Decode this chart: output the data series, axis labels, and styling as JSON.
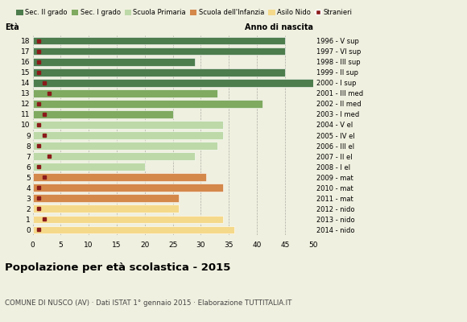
{
  "ages": [
    18,
    17,
    16,
    15,
    14,
    13,
    12,
    11,
    10,
    9,
    8,
    7,
    6,
    5,
    4,
    3,
    2,
    1,
    0
  ],
  "bar_values": [
    45,
    45,
    29,
    45,
    50,
    33,
    41,
    25,
    34,
    34,
    33,
    29,
    20,
    31,
    34,
    26,
    26,
    34,
    36
  ],
  "stranieri_values": [
    1,
    1,
    1,
    1,
    2,
    3,
    1,
    2,
    1,
    2,
    1,
    3,
    1,
    2,
    1,
    1,
    1,
    2,
    1
  ],
  "categories": {
    "sec2": [
      14,
      15,
      16,
      17,
      18
    ],
    "sec1": [
      11,
      12,
      13
    ],
    "primaria": [
      6,
      7,
      8,
      9,
      10
    ],
    "infanzia": [
      3,
      4,
      5
    ],
    "nido": [
      0,
      1,
      2
    ]
  },
  "colors": {
    "sec2": "#4d7c4d",
    "sec1": "#7faa60",
    "primaria": "#bdd9a8",
    "infanzia": "#d4884a",
    "nido": "#f5d98b",
    "stranieri": "#8b1a1a"
  },
  "right_labels": {
    "18": "1996 - V sup",
    "17": "1997 - VI sup",
    "16": "1998 - III sup",
    "15": "1999 - II sup",
    "14": "2000 - I sup",
    "13": "2001 - III med",
    "12": "2002 - II med",
    "11": "2003 - I med",
    "10": "2004 - V el",
    "9": "2005 - IV el",
    "8": "2006 - III el",
    "7": "2007 - II el",
    "6": "2008 - I el",
    "5": "2009 - mat",
    "4": "2010 - mat",
    "3": "2011 - mat",
    "2": "2012 - nido",
    "1": "2013 - nido",
    "0": "2014 - nido"
  },
  "legend_labels": [
    "Sec. II grado",
    "Sec. I grado",
    "Scuola Primaria",
    "Scuola dell'Infanzia",
    "Asilo Nido",
    "Stranieri"
  ],
  "title": "Popolazione per età scolastica - 2015",
  "subtitle": "COMUNE DI NUSCO (AV) · Dati ISTAT 1° gennaio 2015 · Elaborazione TUTTITALIA.IT",
  "eta_label": "Età",
  "anno_label": "Anno di nascita",
  "xlim": [
    0,
    50
  ],
  "background_color": "#f0f0e0",
  "plot_bg": "#f0f0e0"
}
